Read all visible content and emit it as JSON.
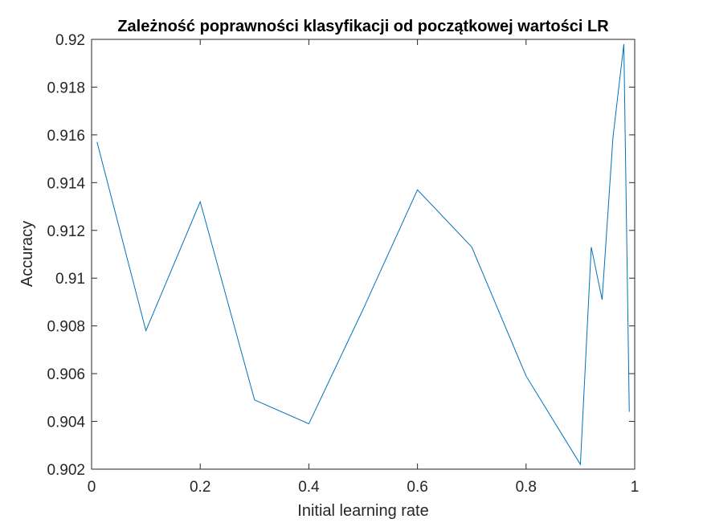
{
  "chart_data": {
    "type": "line",
    "title": "Zależność poprawności klasyfikacji od początkowej wartości LR",
    "xlabel": "Initial learning rate",
    "ylabel": "Accuracy",
    "xlim": [
      0,
      1
    ],
    "ylim": [
      0.902,
      0.92
    ],
    "xticks": [
      0,
      0.2,
      0.4,
      0.6,
      0.8,
      1
    ],
    "xtick_labels": [
      "0",
      "0.2",
      "0.4",
      "0.6",
      "0.8",
      "1"
    ],
    "yticks": [
      0.902,
      0.904,
      0.906,
      0.908,
      0.91,
      0.912,
      0.914,
      0.916,
      0.918,
      0.92
    ],
    "ytick_labels": [
      "0.902",
      "0.904",
      "0.906",
      "0.908",
      "0.91",
      "0.912",
      "0.914",
      "0.916",
      "0.918",
      "0.92"
    ],
    "grid": false,
    "series": [
      {
        "color": "#0072bd",
        "x": [
          0.01,
          0.1,
          0.2,
          0.3,
          0.4,
          0.5,
          0.6,
          0.7,
          0.8,
          0.9,
          0.92,
          0.94,
          0.96,
          0.98,
          0.99
        ],
        "y": [
          0.9157,
          0.9078,
          0.9132,
          0.9049,
          0.9039,
          0.9087,
          0.9137,
          0.9113,
          0.9059,
          0.9022,
          0.9113,
          0.9091,
          0.9159,
          0.9198,
          0.9044
        ]
      }
    ]
  }
}
